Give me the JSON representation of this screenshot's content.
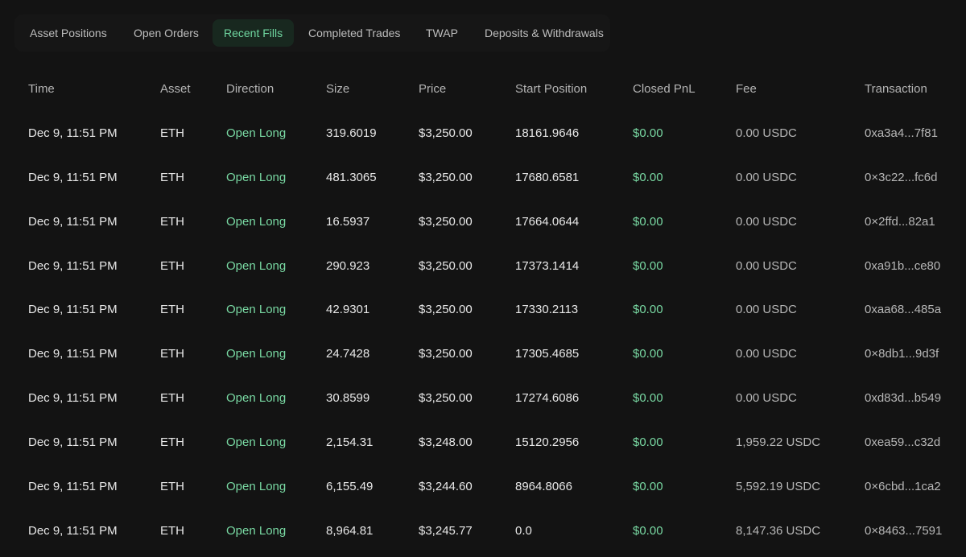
{
  "tabs": [
    {
      "label": "Asset Positions",
      "active": false
    },
    {
      "label": "Open Orders",
      "active": false
    },
    {
      "label": "Recent Fills",
      "active": true
    },
    {
      "label": "Completed Trades",
      "active": false
    },
    {
      "label": "TWAP",
      "active": false
    },
    {
      "label": "Deposits & Withdrawals",
      "active": false
    }
  ],
  "colors": {
    "background": "#131313",
    "accent_green": "#79d9a3",
    "active_tab_bg": "#18281f"
  },
  "table": {
    "columns": [
      "Time",
      "Asset",
      "Direction",
      "Size",
      "Price",
      "Start Position",
      "Closed PnL",
      "Fee",
      "Transaction"
    ],
    "rows": [
      {
        "time": "Dec 9, 11:51 PM",
        "asset": "ETH",
        "direction": "Open Long",
        "size": "319.6019",
        "price": "$3,250.00",
        "start_position": "18161.9646",
        "closed_pnl": "$0.00",
        "fee": "0.00 USDC",
        "transaction": "0xa3a4...7f81"
      },
      {
        "time": "Dec 9, 11:51 PM",
        "asset": "ETH",
        "direction": "Open Long",
        "size": "481.3065",
        "price": "$3,250.00",
        "start_position": "17680.6581",
        "closed_pnl": "$0.00",
        "fee": "0.00 USDC",
        "transaction": "0×3c22...fc6d"
      },
      {
        "time": "Dec 9, 11:51 PM",
        "asset": "ETH",
        "direction": "Open Long",
        "size": "16.5937",
        "price": "$3,250.00",
        "start_position": "17664.0644",
        "closed_pnl": "$0.00",
        "fee": "0.00 USDC",
        "transaction": "0×2ffd...82a1"
      },
      {
        "time": "Dec 9, 11:51 PM",
        "asset": "ETH",
        "direction": "Open Long",
        "size": "290.923",
        "price": "$3,250.00",
        "start_position": "17373.1414",
        "closed_pnl": "$0.00",
        "fee": "0.00 USDC",
        "transaction": "0xa91b...ce80"
      },
      {
        "time": "Dec 9, 11:51 PM",
        "asset": "ETH",
        "direction": "Open Long",
        "size": "42.9301",
        "price": "$3,250.00",
        "start_position": "17330.2113",
        "closed_pnl": "$0.00",
        "fee": "0.00 USDC",
        "transaction": "0xaa68...485a"
      },
      {
        "time": "Dec 9, 11:51 PM",
        "asset": "ETH",
        "direction": "Open Long",
        "size": "24.7428",
        "price": "$3,250.00",
        "start_position": "17305.4685",
        "closed_pnl": "$0.00",
        "fee": "0.00 USDC",
        "transaction": "0×8db1...9d3f"
      },
      {
        "time": "Dec 9, 11:51 PM",
        "asset": "ETH",
        "direction": "Open Long",
        "size": "30.8599",
        "price": "$3,250.00",
        "start_position": "17274.6086",
        "closed_pnl": "$0.00",
        "fee": "0.00 USDC",
        "transaction": "0xd83d...b549"
      },
      {
        "time": "Dec 9, 11:51 PM",
        "asset": "ETH",
        "direction": "Open Long",
        "size": "2,154.31",
        "price": "$3,248.00",
        "start_position": "15120.2956",
        "closed_pnl": "$0.00",
        "fee": "1,959.22 USDC",
        "transaction": "0xea59...c32d"
      },
      {
        "time": "Dec 9, 11:51 PM",
        "asset": "ETH",
        "direction": "Open Long",
        "size": "6,155.49",
        "price": "$3,244.60",
        "start_position": "8964.8066",
        "closed_pnl": "$0.00",
        "fee": "5,592.19 USDC",
        "transaction": "0×6cbd...1ca2"
      },
      {
        "time": "Dec 9, 11:51 PM",
        "asset": "ETH",
        "direction": "Open Long",
        "size": "8,964.81",
        "price": "$3,245.77",
        "start_position": "0.0",
        "closed_pnl": "$0.00",
        "fee": "8,147.36 USDC",
        "transaction": "0×8463...7591"
      }
    ]
  }
}
